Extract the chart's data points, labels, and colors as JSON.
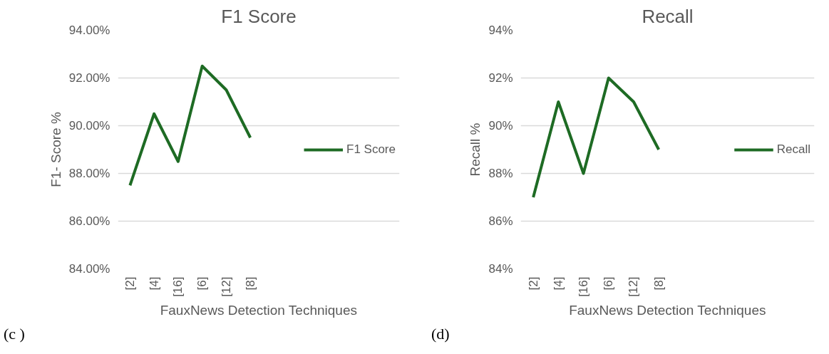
{
  "chart_data": [
    {
      "type": "line",
      "title": "F1 Score",
      "xlabel": "FauxNews Detection Techniques",
      "ylabel": "F1- Score %",
      "categories": [
        "[2]",
        "[4]",
        "[16]",
        "[6]",
        "[12]",
        "[8]"
      ],
      "series": [
        {
          "name": "F1 Score",
          "color": "#1e6b24",
          "values": [
            87.5,
            90.5,
            88.5,
            92.5,
            91.5,
            89.5
          ]
        }
      ],
      "ylim": [
        84,
        94
      ],
      "yticks": [
        {
          "value": 84,
          "label": "84.00%"
        },
        {
          "value": 86,
          "label": "86.00%"
        },
        {
          "value": 88,
          "label": "88.00%"
        },
        {
          "value": 90,
          "label": "90.00%"
        },
        {
          "value": 92,
          "label": "92.00%"
        },
        {
          "value": 94,
          "label": "94.00%"
        }
      ],
      "grid": "y",
      "legend": "right",
      "annotations": [
        "(c )"
      ]
    },
    {
      "type": "line",
      "title": "Recall",
      "xlabel": "FauxNews Detection Techniques",
      "ylabel": "Recall %",
      "categories": [
        "[2]",
        "[4]",
        "[16]",
        "[6]",
        "[12]",
        "[8]"
      ],
      "series": [
        {
          "name": "Recall",
          "color": "#1e6b24",
          "values": [
            87,
            91,
            88,
            92,
            91,
            89
          ]
        }
      ],
      "ylim": [
        84,
        94
      ],
      "yticks": [
        {
          "value": 84,
          "label": "84%"
        },
        {
          "value": 86,
          "label": "86%"
        },
        {
          "value": 88,
          "label": "88%"
        },
        {
          "value": 90,
          "label": "90%"
        },
        {
          "value": 92,
          "label": "92%"
        },
        {
          "value": 94,
          "label": "94%"
        }
      ],
      "grid": "y",
      "legend": "right",
      "annotations": [
        "(d)"
      ]
    }
  ]
}
